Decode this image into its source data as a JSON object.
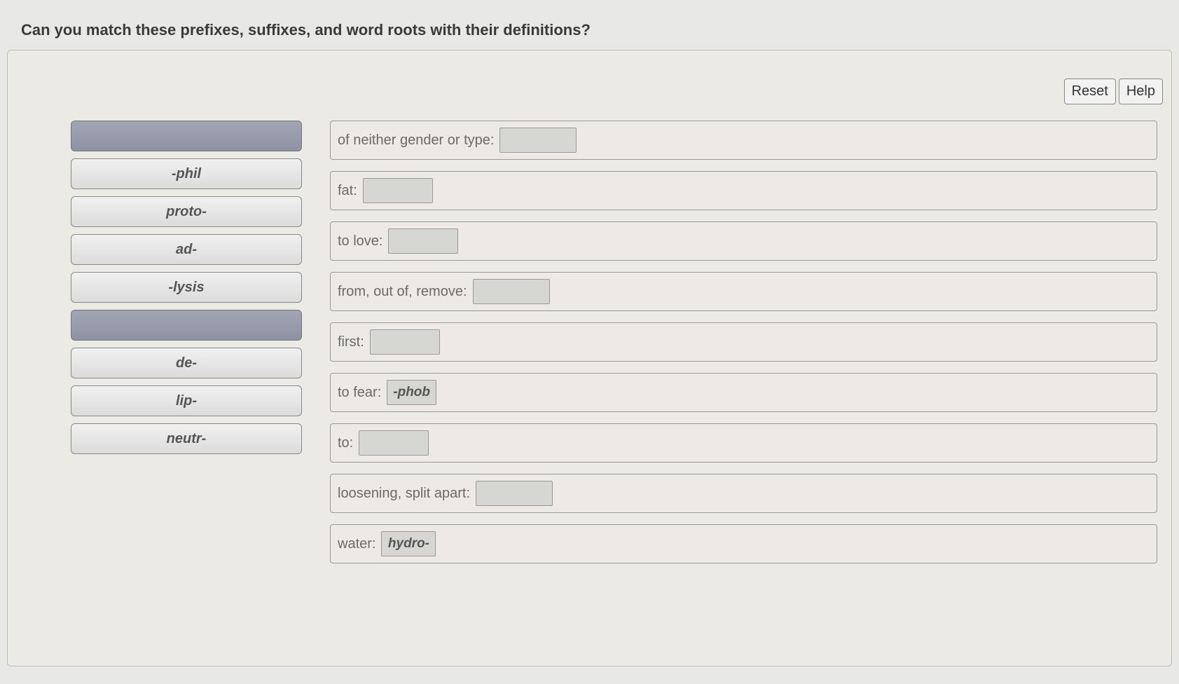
{
  "title": "Can you match these prefixes, suffixes, and word roots with their definitions?",
  "toolbar": {
    "reset": "Reset",
    "help": "Help"
  },
  "sources": [
    {
      "label": "",
      "empty": true
    },
    {
      "label": "-phil",
      "empty": false
    },
    {
      "label": "proto-",
      "empty": false
    },
    {
      "label": "ad-",
      "empty": false
    },
    {
      "label": "-lysis",
      "empty": false
    },
    {
      "label": "",
      "empty": true
    },
    {
      "label": "de-",
      "empty": false
    },
    {
      "label": "lip-",
      "empty": false
    },
    {
      "label": "neutr-",
      "empty": false
    }
  ],
  "targets": [
    {
      "label": "of neither gender or type:",
      "answer": "",
      "zone_width": 110
    },
    {
      "label": "fat:",
      "answer": "",
      "zone_width": 100
    },
    {
      "label": "to love:",
      "answer": "",
      "zone_width": 100
    },
    {
      "label": "from, out of, remove:",
      "answer": "",
      "zone_width": 110
    },
    {
      "label": "first:",
      "answer": "",
      "zone_width": 100
    },
    {
      "label": "to fear:",
      "answer": "-phob",
      "zone_width": 70
    },
    {
      "label": "to:",
      "answer": "",
      "zone_width": 100
    },
    {
      "label": "loosening, split apart:",
      "answer": "",
      "zone_width": 110
    },
    {
      "label": "water:",
      "answer": "hydro-",
      "zone_width": 78
    }
  ],
  "colors": {
    "page_bg": "#e8e8e6",
    "panel_bg": "#eceae4",
    "border": "#999",
    "empty_src": "#8f92a3",
    "text_label": "#6a6a6a"
  }
}
